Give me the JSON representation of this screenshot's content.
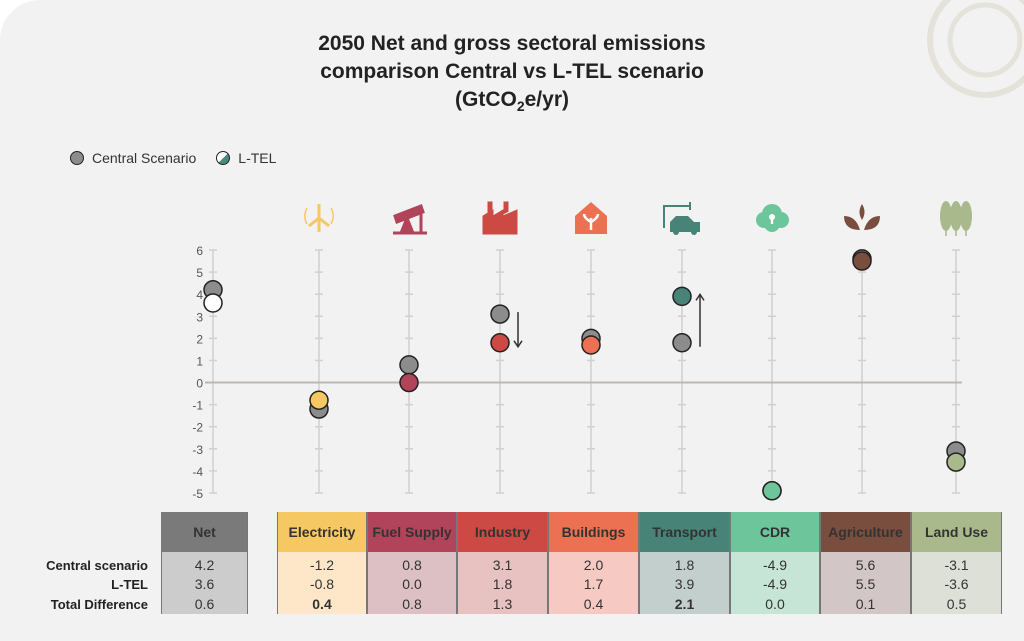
{
  "chart_data": {
    "type": "scatter",
    "title_line1": "2050 Net and gross sectoral emissions",
    "title_line2": "comparison Central vs L-TEL scenario",
    "title_unit_pre": "(GtCO",
    "title_unit_sub": "2",
    "title_unit_post": "e/yr)",
    "ylim": [
      -5,
      6
    ],
    "yticks": [
      "6",
      "5",
      "4",
      "3",
      "2",
      "1",
      "0",
      "-1",
      "-2",
      "-3",
      "-4",
      "-5"
    ],
    "legend": [
      {
        "name": "Central Scenario",
        "color": "#8c8c8c"
      },
      {
        "name": "L-TEL",
        "color": "#4a8a7e"
      }
    ],
    "categories": [
      "Net",
      "Electricity",
      "Fuel Supply",
      "Industry",
      "Buildings",
      "Transport",
      "CDR",
      "Agriculture",
      "Land Use"
    ],
    "category_icons": [
      "none",
      "wind-turbine-icon",
      "oil-pump-icon",
      "factory-icon",
      "house-plant-icon",
      "electric-car-icon",
      "cloud-keyhole-icon",
      "leaves-icon",
      "trees-icon"
    ],
    "category_colors": [
      "#7a7a7a",
      "#f6c864",
      "#b1435a",
      "#cc4a43",
      "#ec7152",
      "#478377",
      "#6dc59c",
      "#7a4e3e",
      "#a9b98c"
    ],
    "cell_colors": [
      "#cccccc",
      "#fde7c8",
      "#dcc0c4",
      "#e8c1c1",
      "#f6c9c3",
      "#c3cfcd",
      "#c7e5d6",
      "#d2c7c6",
      "#dde0d6"
    ],
    "series": [
      {
        "name": "Central scenario",
        "values": [
          4.2,
          -1.2,
          0.8,
          3.1,
          2.0,
          1.8,
          -4.9,
          5.6,
          -3.1
        ]
      },
      {
        "name": "L-TEL",
        "values": [
          3.6,
          -0.8,
          0.0,
          1.8,
          1.7,
          3.9,
          -4.9,
          5.5,
          -3.6
        ]
      }
    ],
    "difference": {
      "name": "Total Difference",
      "values": [
        "0.6",
        "0.4",
        "0.8",
        "1.3",
        "0.4",
        "2.1",
        "0.0",
        "0.1",
        "0.5"
      ],
      "bold": [
        false,
        true,
        false,
        false,
        false,
        true,
        false,
        false,
        false
      ]
    },
    "table_values": {
      "central": [
        "4.2",
        "-1.2",
        "0.8",
        "3.1",
        "2.0",
        "1.8",
        "-4.9",
        "5.6",
        "-3.1"
      ],
      "ltel": [
        "3.6",
        "-0.8",
        "0.0",
        "1.8",
        "1.7",
        "3.9",
        "-4.9",
        "5.5",
        "-3.6"
      ]
    },
    "arrows": [
      {
        "category": "Industry",
        "direction": "down"
      },
      {
        "category": "Transport",
        "direction": "up"
      }
    ]
  }
}
